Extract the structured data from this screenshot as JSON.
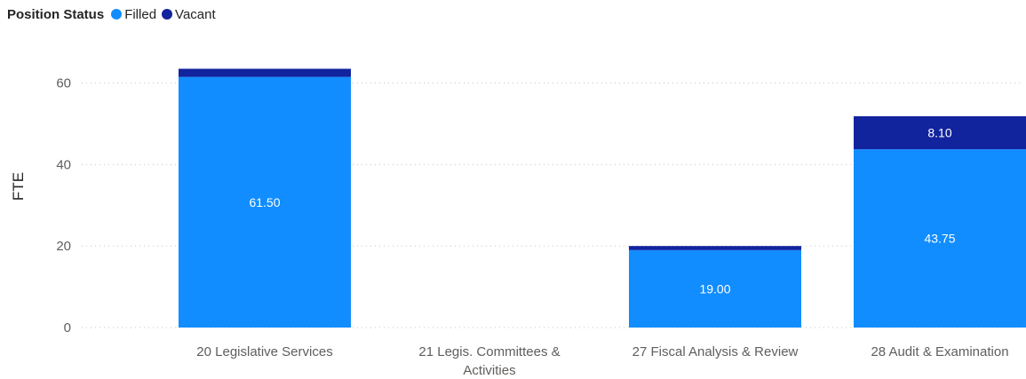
{
  "legend": {
    "title": "Position Status",
    "items": [
      {
        "label": "Filled",
        "color": "#118DFF"
      },
      {
        "label": "Vacant",
        "color": "#12239E"
      }
    ]
  },
  "chart_data": {
    "type": "bar",
    "stacked": true,
    "categories": [
      "20 Legislative Services",
      "21 Legis. Committees & Activities",
      "27 Fiscal Analysis & Review",
      "28 Audit & Examination"
    ],
    "category_label_lines": [
      [
        "20 Legislative Services"
      ],
      [
        "21 Legis. Committees &",
        "Activities"
      ],
      [
        "27 Fiscal Analysis & Review"
      ],
      [
        "28 Audit & Examination"
      ]
    ],
    "series": [
      {
        "name": "Filled",
        "color": "#118DFF",
        "values": [
          61.5,
          0,
          19.0,
          43.75
        ]
      },
      {
        "name": "Vacant",
        "color": "#12239E",
        "values": [
          2.0,
          0,
          1.0,
          8.1
        ]
      }
    ],
    "data_labels": [
      [
        "61.50",
        null,
        "19.00",
        "43.75"
      ],
      [
        null,
        null,
        null,
        "8.10"
      ]
    ],
    "ylabel": "FTE",
    "xlabel": "",
    "ylim": [
      0,
      66
    ],
    "yticks": [
      0,
      20,
      40,
      60
    ],
    "ytick_labels": [
      "0",
      "20",
      "40",
      "60"
    ],
    "grid": true,
    "legend_position": "top-left"
  }
}
